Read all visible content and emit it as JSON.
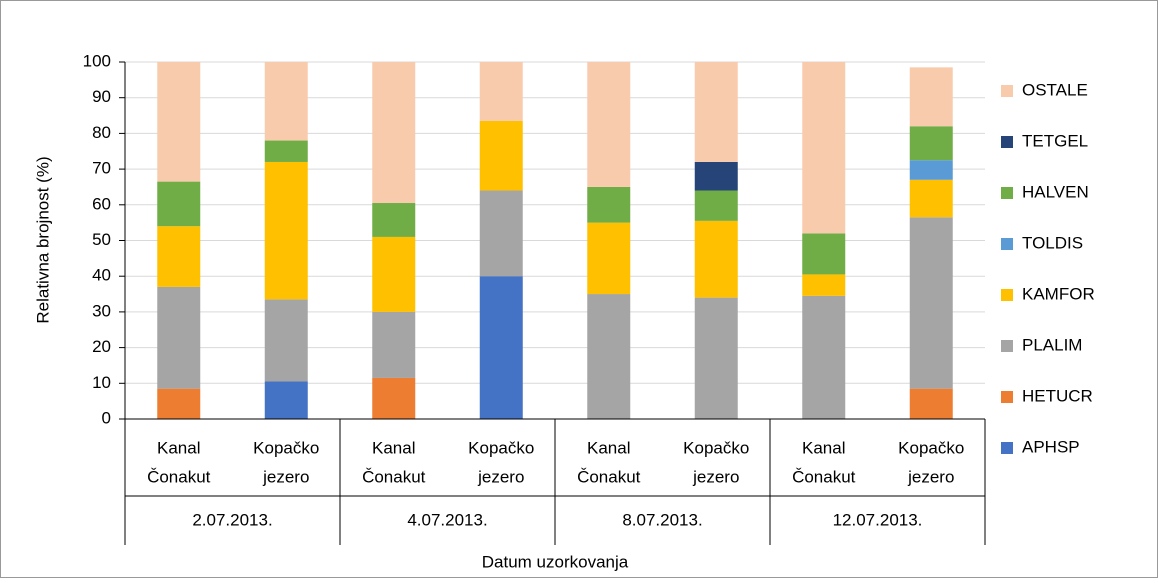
{
  "chart_data": {
    "type": "stacked-bar",
    "y_label": "Relativna brojnost (%)",
    "x_label": "Datum uzorkovanja",
    "categories": [
      [
        "Kanal",
        "Čonakut"
      ],
      [
        "Kopačko",
        "jezero"
      ],
      [
        "Kanal",
        "Čonakut"
      ],
      [
        "Kopačko",
        "jezero"
      ],
      [
        "Kanal",
        "Čonakut"
      ],
      [
        "Kopačko",
        "jezero"
      ],
      [
        "Kanal",
        "Čonakut"
      ],
      [
        "Kopačko",
        "jezero"
      ]
    ],
    "groups": [
      "2.07.2013.",
      "4.07.2013.",
      "8.07.2013.",
      "12.07.2013."
    ],
    "series": [
      {
        "name": "APHSP",
        "color": "#4472c4",
        "values": [
          null,
          10.5,
          null,
          40,
          null,
          null,
          null,
          null
        ]
      },
      {
        "name": "HETUCR",
        "color": "#ed7d31",
        "values": [
          8.5,
          null,
          11.5,
          null,
          null,
          null,
          null,
          8.5
        ]
      },
      {
        "name": "PLALIM",
        "color": "#a5a5a5",
        "values": [
          28.5,
          23,
          18.5,
          24,
          35,
          34,
          34.5,
          48
        ]
      },
      {
        "name": "KAMFOR",
        "color": "#ffc000",
        "values": [
          17,
          38.5,
          21,
          19.5,
          20,
          21.5,
          6,
          10.5
        ]
      },
      {
        "name": "TOLDIS",
        "color": "#5b9bd5",
        "values": [
          null,
          null,
          null,
          null,
          null,
          null,
          null,
          5.5
        ]
      },
      {
        "name": "HALVEN",
        "color": "#70ad47",
        "values": [
          12.5,
          6,
          9.5,
          null,
          10,
          8.5,
          11.5,
          9.5
        ]
      },
      {
        "name": "TETGEL",
        "color": "#264478",
        "values": [
          null,
          null,
          null,
          null,
          null,
          8,
          null,
          null
        ]
      },
      {
        "name": "OSTALE",
        "color": "#f8cbad",
        "values": [
          33.5,
          22,
          39.5,
          16.5,
          35,
          28,
          48,
          16.5
        ]
      }
    ],
    "ylim": [
      0,
      100
    ],
    "yticks": [
      0,
      10,
      20,
      30,
      40,
      50,
      60,
      70,
      80,
      90,
      100
    ],
    "grid": true
  }
}
